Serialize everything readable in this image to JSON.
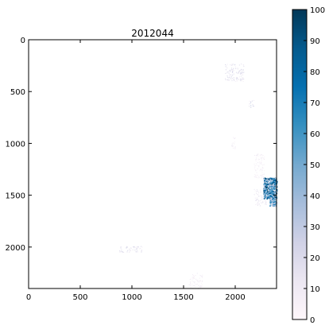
{
  "chart_data": {
    "type": "heatmap",
    "title": "2012044",
    "xlabel": "",
    "ylabel": "",
    "x_range": [
      0,
      2400
    ],
    "y_range": [
      2400,
      0
    ],
    "x_ticks": [
      0,
      500,
      1000,
      1500,
      2000
    ],
    "y_ticks": [
      0,
      500,
      1000,
      1500,
      2000
    ],
    "colorbar": {
      "range": [
        0,
        100
      ],
      "ticks": [
        0,
        10,
        20,
        30,
        40,
        50,
        60,
        70,
        80,
        90,
        100
      ],
      "colormap": "PuBu",
      "colors": [
        "#fff7fb",
        "#ece7f2",
        "#d0d1e6",
        "#a6bddb",
        "#74a9cf",
        "#3690c0",
        "#0570b0",
        "#045a8d",
        "#023858"
      ]
    },
    "clusters": [
      {
        "x": [
          1900,
          2080
        ],
        "y": [
          230,
          400
        ],
        "value": 20
      },
      {
        "x": [
          2130,
          2180
        ],
        "y": [
          580,
          650
        ],
        "value": 30
      },
      {
        "x": [
          1960,
          2000
        ],
        "y": [
          930,
          1050
        ],
        "value": 10
      },
      {
        "x": [
          2180,
          2280
        ],
        "y": [
          1100,
          1330
        ],
        "value": 10
      },
      {
        "x": [
          2180,
          2300
        ],
        "y": [
          1440,
          1600
        ],
        "value": 15
      },
      {
        "x": [
          2270,
          2400
        ],
        "y": [
          1330,
          1530
        ],
        "value": 80
      },
      {
        "x": [
          2330,
          2400
        ],
        "y": [
          1530,
          1600
        ],
        "value": 60
      },
      {
        "x": [
          870,
          1100
        ],
        "y": [
          1990,
          2050
        ],
        "value": 20
      },
      {
        "x": [
          1550,
          1680
        ],
        "y": [
          2250,
          2400
        ],
        "value": 10
      }
    ]
  }
}
